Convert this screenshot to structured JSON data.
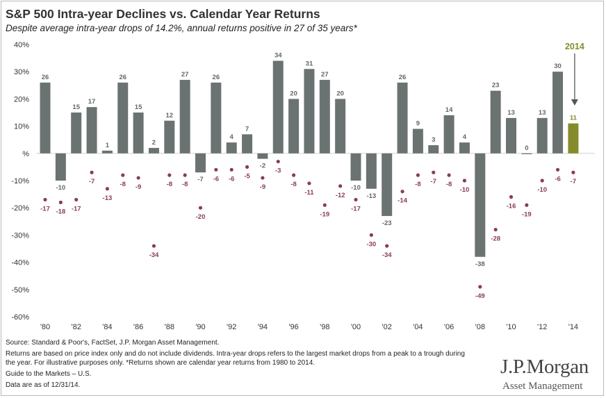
{
  "title": "S&P 500 Intra-year Declines vs. Calendar Year Returns",
  "subtitle": "Despite average intra-year drops of 14.2%, annual returns positive in 27 of 35 years*",
  "colors": {
    "bar": "#6b7372",
    "highlight": "#858b2a",
    "dot": "#8a3a5e",
    "axis_text": "#333333",
    "bar_label": "#666666"
  },
  "chart_data": {
    "type": "bar",
    "years": [
      1980,
      1981,
      1982,
      1983,
      1984,
      1985,
      1986,
      1987,
      1988,
      1989,
      1990,
      1991,
      1992,
      1993,
      1994,
      1995,
      1996,
      1997,
      1998,
      1999,
      2000,
      2001,
      2002,
      2003,
      2004,
      2005,
      2006,
      2007,
      2008,
      2009,
      2010,
      2011,
      2012,
      2013,
      2014
    ],
    "series": [
      {
        "name": "Calendar year returns",
        "kind": "bar",
        "values": [
          26,
          -10,
          15,
          17,
          1,
          26,
          15,
          2,
          12,
          27,
          -7,
          26,
          4,
          7,
          -2,
          34,
          20,
          31,
          27,
          20,
          -10,
          -13,
          -23,
          26,
          9,
          3,
          14,
          4,
          -38,
          23,
          13,
          0,
          13,
          30,
          11
        ]
      },
      {
        "name": "Intra-year drops",
        "kind": "dot",
        "values": [
          -17,
          -18,
          -17,
          -7,
          -13,
          -8,
          -9,
          -34,
          -8,
          -8,
          -20,
          -6,
          -6,
          -5,
          -9,
          -3,
          -8,
          -11,
          -19,
          -12,
          -17,
          -30,
          -34,
          -14,
          -8,
          -7,
          -8,
          -10,
          -49,
          -28,
          -16,
          -19,
          -10,
          -6,
          -7
        ]
      }
    ],
    "highlight": {
      "year": 2014,
      "label": "2014"
    },
    "x_tick_labels": [
      "'80",
      "'82",
      "'84",
      "'86",
      "'88",
      "'90",
      "'92",
      "'94",
      "'96",
      "'98",
      "'00",
      "'02",
      "'04",
      "'06",
      "'08",
      "'10",
      "'12",
      "'14"
    ],
    "y_ticks": [
      "40%",
      "30%",
      "20%",
      "10%",
      "%",
      "-10%",
      "-20%",
      "-30%",
      "-40%",
      "-50%",
      "-60%"
    ],
    "ylim": [
      -60,
      40
    ],
    "xlabel": "",
    "ylabel": ""
  },
  "notes": {
    "source": "Source: Standard & Poor's, FactSet, J.P. Morgan Asset Management.",
    "footnote_1": "Returns are based on price index only and do not include dividends. Intra-year drops refers to the largest market drops from a peak to a trough during",
    "footnote_2": "the year. For illustrative purposes only.  *Returns shown are calendar year returns from 1980 to 2014.",
    "guide": "Guide to the Markets – U.S.",
    "date": "Data are as of 12/31/14."
  },
  "logo": {
    "line1": "J.P.Morgan",
    "line2": "Asset Management"
  }
}
